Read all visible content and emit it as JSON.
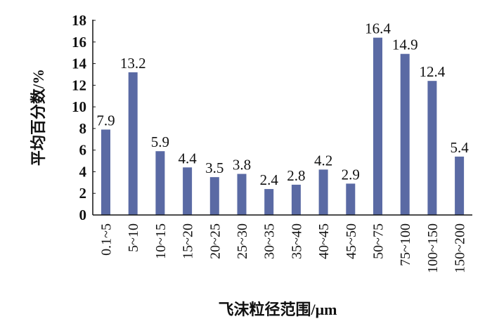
{
  "chart_data": {
    "type": "bar",
    "title": "",
    "xlabel": "飞沫粒径范围/μm",
    "ylabel": "平均百分数/%",
    "categories": [
      "0.1~5",
      "5~10",
      "10~15",
      "15~20",
      "20~25",
      "25~30",
      "30~35",
      "35~40",
      "40~45",
      "45~50",
      "50~75",
      "75~100",
      "100~150",
      "150~200"
    ],
    "values": [
      7.9,
      13.2,
      5.9,
      4.4,
      3.5,
      3.8,
      2.4,
      2.8,
      4.2,
      2.9,
      16.4,
      14.9,
      12.4,
      5.4
    ],
    "data_labels": [
      "7.9",
      "13.2",
      "5.9",
      "4.4",
      "3.5",
      "3.8",
      "2.4",
      "2.8",
      "4.2",
      "2.9",
      "16.4",
      "14.9",
      "12.4",
      "5.4"
    ],
    "ylim": [
      0,
      18
    ],
    "yticks": [
      "0",
      "2",
      "4",
      "6",
      "8",
      "10",
      "12",
      "14",
      "16",
      "18"
    ],
    "grid": false,
    "legend": "none",
    "bar_color": "#5a6aa4"
  }
}
